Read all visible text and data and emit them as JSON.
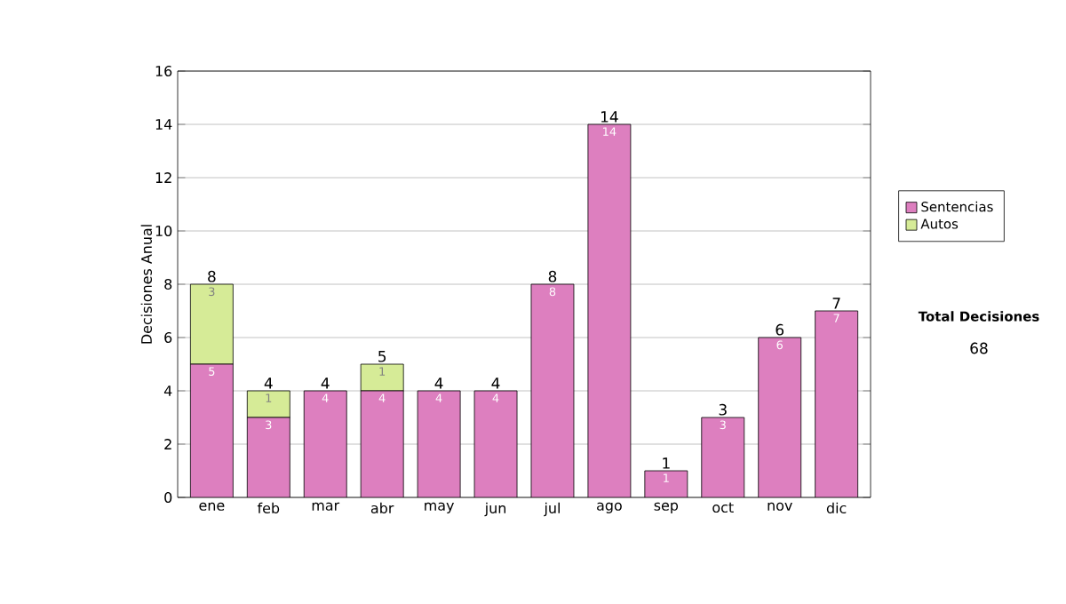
{
  "chart_data": {
    "type": "bar",
    "stacked": true,
    "ylabel": "Decisiones Anual",
    "categories": [
      "ene",
      "feb",
      "mar",
      "abr",
      "may",
      "jun",
      "jul",
      "ago",
      "sep",
      "oct",
      "nov",
      "dic"
    ],
    "series": [
      {
        "name": "Sentencias",
        "color": "#dd7fbf",
        "values": [
          5,
          3,
          4,
          4,
          4,
          4,
          8,
          14,
          1,
          3,
          6,
          7
        ]
      },
      {
        "name": "Autos",
        "color": "#d6eb97",
        "values": [
          3,
          1,
          null,
          1,
          null,
          null,
          null,
          null,
          null,
          null,
          null,
          null
        ]
      }
    ],
    "totals": [
      "8",
      "4",
      "4",
      "5",
      "4",
      "4",
      "8",
      "14",
      "1",
      "3",
      "6",
      "7"
    ],
    "data_labels": true,
    "ylim": [
      0,
      16
    ],
    "yticks": [
      0,
      2,
      4,
      6,
      8,
      10,
      12,
      14,
      16
    ],
    "grid": "y",
    "legend": "right",
    "annotations": [
      "Total Decisiones",
      "68"
    ]
  }
}
